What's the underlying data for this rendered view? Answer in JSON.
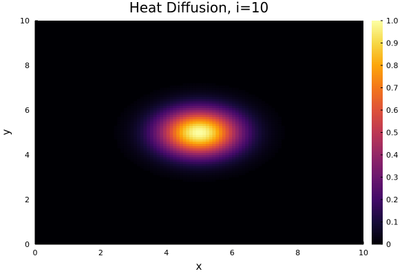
{
  "chart_data": {
    "type": "heatmap",
    "title": "Heat Diffusion, i=10",
    "xlabel": "x",
    "ylabel": "y",
    "xlim": [
      0,
      10
    ],
    "ylim": [
      0,
      10
    ],
    "x_ticks": [
      "0",
      "2",
      "4",
      "6",
      "8",
      "10"
    ],
    "y_ticks": [
      "0",
      "2",
      "4",
      "6",
      "8",
      "10"
    ],
    "colorbar": {
      "colormap": "inferno",
      "range": [
        0,
        1
      ],
      "ticks": [
        "0",
        "0.1",
        "0.2",
        "0.3",
        "0.4",
        "0.5",
        "0.6",
        "0.7",
        "0.8",
        "0.9",
        "1.0"
      ]
    },
    "field": {
      "description_free_params": true,
      "center": [
        5,
        5
      ],
      "peak": 1.0,
      "sigma_x": 0.85,
      "sigma_y": 0.72,
      "grid_resolution": 100
    },
    "grid": false,
    "colors": {
      "background": "#000004",
      "axis": "#000000",
      "text": "#000000"
    }
  }
}
